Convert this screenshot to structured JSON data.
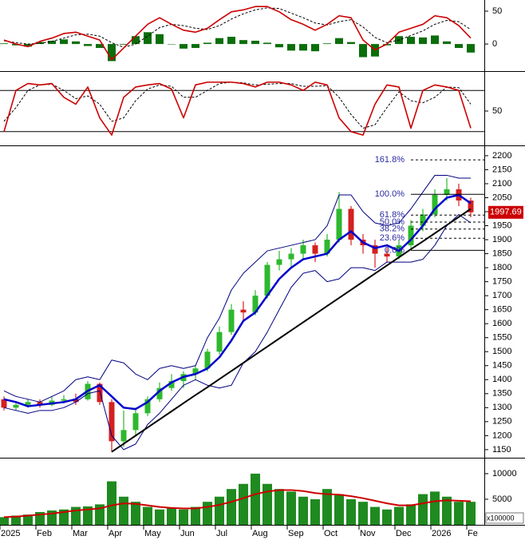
{
  "chart_data": [
    {
      "type": "line",
      "ylim": [
        -40,
        67
      ],
      "yticks": [
        0,
        50
      ],
      "series": [
        {
          "style": "bar",
          "color": "#0a6e0a",
          "values": [
            1,
            -2,
            -4,
            3,
            5,
            7,
            4,
            -3,
            -6,
            -26,
            -1,
            12,
            18,
            15,
            0,
            -7,
            -6,
            2,
            9,
            11,
            6,
            5,
            2,
            -5,
            -10,
            -10,
            -11,
            1,
            9,
            3,
            -20,
            -19,
            -2,
            12,
            11,
            10,
            13,
            4,
            -6,
            -13
          ]
        },
        {
          "style": "dashed",
          "color": "#000000",
          "values": [
            5,
            2,
            0,
            1,
            4,
            9,
            14,
            15,
            12,
            2,
            -5,
            0,
            12,
            25,
            30,
            28,
            24,
            22,
            28,
            38,
            46,
            52,
            55,
            54,
            47,
            40,
            32,
            29,
            34,
            37,
            26,
            10,
            2,
            6,
            13,
            20,
            30,
            36,
            34,
            22
          ]
        },
        {
          "style": "line",
          "color": "#cc0000",
          "values": [
            6,
            0,
            -4,
            4,
            9,
            16,
            18,
            12,
            6,
            -24,
            -6,
            12,
            30,
            40,
            30,
            21,
            18,
            24,
            37,
            49,
            52,
            57,
            57,
            49,
            37,
            30,
            21,
            30,
            43,
            40,
            6,
            -9,
            0,
            18,
            24,
            30,
            43,
            40,
            28,
            9
          ]
        }
      ]
    },
    {
      "type": "line",
      "ylim": [
        0,
        100
      ],
      "yticks": [
        50
      ],
      "levels": [
        20,
        80
      ],
      "series": [
        {
          "style": "dashed",
          "color": "#000000",
          "values": [
            35,
            55,
            80,
            88,
            89,
            80,
            68,
            72,
            60,
            35,
            40,
            65,
            82,
            88,
            86,
            70,
            70,
            80,
            90,
            92,
            91,
            88,
            89,
            90,
            90,
            86,
            86,
            87,
            70,
            45,
            25,
            30,
            55,
            78,
            65,
            62,
            70,
            85,
            84,
            60
          ]
        },
        {
          "style": "line",
          "color": "#cc0000",
          "values": [
            20,
            80,
            90,
            88,
            90,
            70,
            60,
            85,
            40,
            15,
            70,
            85,
            88,
            90,
            82,
            40,
            88,
            92,
            92,
            92,
            90,
            85,
            92,
            92,
            88,
            80,
            92,
            88,
            40,
            20,
            15,
            60,
            88,
            85,
            25,
            80,
            88,
            85,
            80,
            25
          ]
        }
      ]
    },
    {
      "type": "candlestick",
      "ylim": [
        1124,
        2234
      ],
      "yticks": [
        1150,
        1200,
        1250,
        1300,
        1350,
        1400,
        1450,
        1500,
        1550,
        1600,
        1650,
        1700,
        1750,
        1800,
        1850,
        1900,
        1950,
        2000,
        2050,
        2100,
        2150,
        2200
      ],
      "up_color": "#2db82d",
      "down_color": "#d42020",
      "open": [
        1330,
        1300,
        1310,
        1320,
        1310,
        1325,
        1330,
        1330,
        1385,
        1320,
        1180,
        1220,
        1280,
        1330,
        1370,
        1395,
        1420,
        1440,
        1500,
        1570,
        1650,
        1640,
        1700,
        1810,
        1830,
        1850,
        1880,
        1850,
        1900,
        2010,
        1900,
        1880,
        1850,
        1840,
        1880,
        1950,
        1990,
        2060,
        2080,
        2040
      ],
      "high": [
        1340,
        1320,
        1330,
        1330,
        1340,
        1345,
        1350,
        1395,
        1390,
        1330,
        1290,
        1300,
        1340,
        1390,
        1420,
        1430,
        1450,
        1510,
        1590,
        1670,
        1680,
        1720,
        1820,
        1860,
        1870,
        1900,
        1890,
        1920,
        2070,
        2020,
        1920,
        1900,
        1870,
        1900,
        1970,
        2010,
        2080,
        2120,
        2100,
        2050
      ],
      "low": [
        1290,
        1290,
        1300,
        1300,
        1305,
        1315,
        1310,
        1325,
        1310,
        1142,
        1160,
        1200,
        1270,
        1320,
        1360,
        1370,
        1400,
        1430,
        1490,
        1560,
        1610,
        1630,
        1690,
        1790,
        1800,
        1830,
        1820,
        1840,
        1890,
        1880,
        1850,
        1800,
        1820,
        1830,
        1870,
        1930,
        1980,
        2040,
        2020,
        1980
      ],
      "close": [
        1300,
        1310,
        1320,
        1310,
        1325,
        1330,
        1320,
        1385,
        1320,
        1180,
        1220,
        1280,
        1330,
        1370,
        1395,
        1420,
        1440,
        1500,
        1570,
        1650,
        1640,
        1700,
        1810,
        1830,
        1850,
        1880,
        1850,
        1900,
        2010,
        1900,
        1880,
        1850,
        1840,
        1880,
        1950,
        1990,
        2060,
        2080,
        2040,
        1997.69
      ],
      "series": [
        {
          "style": "line",
          "color": "#000080",
          "width": 1,
          "values": [
            1360,
            1340,
            1330,
            1320,
            1340,
            1360,
            1400,
            1410,
            1400,
            1470,
            1460,
            1420,
            1400,
            1440,
            1450,
            1440,
            1450,
            1550,
            1620,
            1720,
            1780,
            1820,
            1860,
            1870,
            1880,
            1890,
            1900,
            1950,
            2060,
            2060,
            2000,
            1960,
            1950,
            1960,
            2010,
            2070,
            2130,
            2130,
            2120,
            2120
          ]
        },
        {
          "style": "line",
          "color": "#000080",
          "width": 1,
          "values": [
            1300,
            1290,
            1280,
            1290,
            1290,
            1300,
            1320,
            1350,
            1360,
            1200,
            1150,
            1170,
            1240,
            1280,
            1330,
            1380,
            1400,
            1380,
            1370,
            1380,
            1460,
            1500,
            1570,
            1650,
            1730,
            1780,
            1790,
            1750,
            1760,
            1800,
            1800,
            1790,
            1820,
            1820,
            1820,
            1830,
            1880,
            1950,
            1990,
            1960
          ]
        },
        {
          "style": "line",
          "color": "#0000cc",
          "width": 2.5,
          "values": [
            1330,
            1320,
            1305,
            1310,
            1315,
            1320,
            1330,
            1360,
            1380,
            1340,
            1300,
            1295,
            1320,
            1360,
            1390,
            1410,
            1420,
            1440,
            1480,
            1540,
            1610,
            1640,
            1700,
            1760,
            1800,
            1830,
            1840,
            1850,
            1900,
            1930,
            1890,
            1870,
            1880,
            1860,
            1900,
            1950,
            2010,
            2050,
            2060,
            2030
          ]
        },
        {
          "style": "line",
          "color": "#000000",
          "width": 2,
          "values": [
            null,
            null,
            null,
            null,
            null,
            null,
            null,
            null,
            null,
            1142,
            1171,
            1200,
            1229,
            1258,
            1287,
            1316,
            1345,
            1373,
            1402,
            1431,
            1460,
            1489,
            1518,
            1547,
            1576,
            1605,
            1634,
            1663,
            1692,
            1721,
            1750,
            1779,
            1808,
            1837,
            1866,
            1894,
            1923,
            1952,
            1981,
            2010
          ]
        }
      ],
      "fib_levels": [
        {
          "label": "161.8%",
          "value": 2185,
          "dashed": true
        },
        {
          "label": "100.0%",
          "value": 2062,
          "dashed": false
        },
        {
          "label": "61.8%",
          "value": 1988,
          "dashed": true
        },
        {
          "label": "50.0%",
          "value": 1963,
          "dashed": true
        },
        {
          "label": "38.2%",
          "value": 1938,
          "dashed": true
        },
        {
          "label": "23.6%",
          "value": 1905,
          "dashed": true
        },
        {
          "label": "0.0%",
          "value": 1862,
          "dashed": false
        }
      ]
    },
    {
      "type": "bar",
      "ylim": [
        0,
        12800
      ],
      "yticks": [
        5000,
        10000
      ],
      "unit_label": "x100000",
      "color": "#1f8a1f",
      "categories": [
        "2025",
        null,
        null,
        "Feb",
        null,
        null,
        "Mar",
        null,
        null,
        "Apr",
        null,
        null,
        "May",
        null,
        null,
        "Jun",
        null,
        null,
        "Jul",
        null,
        null,
        "Aug",
        null,
        null,
        "Sep",
        null,
        null,
        "Oct",
        null,
        null,
        "Nov",
        null,
        null,
        "Dec",
        null,
        null,
        "2026",
        null,
        null,
        "Fe"
      ],
      "values": [
        1500,
        1800,
        2000,
        2500,
        2800,
        3000,
        3500,
        3600,
        4000,
        8500,
        5500,
        4500,
        3500,
        3000,
        3200,
        3000,
        3500,
        4500,
        5500,
        7000,
        8000,
        10000,
        8000,
        7000,
        6500,
        5500,
        5000,
        7000,
        6000,
        5000,
        4500,
        3500,
        3000,
        3500,
        4000,
        6000,
        6500,
        5500,
        4500,
        4500
      ],
      "series": [
        {
          "style": "line",
          "color": "#cc0000",
          "width": 2,
          "values": [
            1500,
            1600,
            1800,
            2000,
            2200,
            2500,
            2800,
            3000,
            3200,
            3800,
            4200,
            4100,
            3800,
            3500,
            3300,
            3200,
            3200,
            3500,
            3900,
            4500,
            5200,
            6000,
            6500,
            6800,
            6800,
            6600,
            6200,
            6000,
            5900,
            5600,
            5200,
            4700,
            4200,
            3800,
            3800,
            4200,
            4600,
            4800,
            4700,
            4600
          ]
        }
      ]
    }
  ]
}
